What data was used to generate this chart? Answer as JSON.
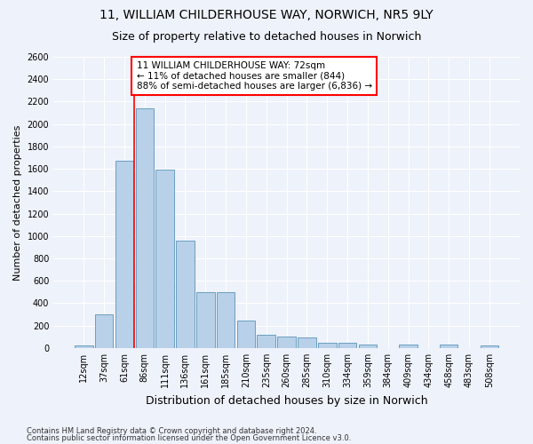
{
  "title1": "11, WILLIAM CHILDERHOUSE WAY, NORWICH, NR5 9LY",
  "title2": "Size of property relative to detached houses in Norwich",
  "xlabel": "Distribution of detached houses by size in Norwich",
  "ylabel": "Number of detached properties",
  "bar_labels": [
    "12sqm",
    "37sqm",
    "61sqm",
    "86sqm",
    "111sqm",
    "136sqm",
    "161sqm",
    "185sqm",
    "210sqm",
    "235sqm",
    "260sqm",
    "285sqm",
    "310sqm",
    "334sqm",
    "359sqm",
    "384sqm",
    "409sqm",
    "434sqm",
    "458sqm",
    "483sqm",
    "508sqm"
  ],
  "bar_values": [
    25,
    300,
    1670,
    2140,
    1590,
    960,
    500,
    500,
    245,
    120,
    100,
    95,
    45,
    45,
    30,
    0,
    30,
    0,
    30,
    0,
    25
  ],
  "bar_color": "#b8d0e8",
  "bar_edge_color": "#6a9fc0",
  "annotation_text_line1": "11 WILLIAM CHILDERHOUSE WAY: 72sqm",
  "annotation_text_line2": "← 11% of detached houses are smaller (844)",
  "annotation_text_line3": "88% of semi-detached houses are larger (6,836) →",
  "annotation_box_color": "white",
  "annotation_box_edge_color": "red",
  "vline_color": "red",
  "vline_x": 2.5,
  "ylim": [
    0,
    2600
  ],
  "yticks": [
    0,
    200,
    400,
    600,
    800,
    1000,
    1200,
    1400,
    1600,
    1800,
    2000,
    2200,
    2400,
    2600
  ],
  "footer1": "Contains HM Land Registry data © Crown copyright and database right 2024.",
  "footer2": "Contains public sector information licensed under the Open Government Licence v3.0.",
  "bg_color": "#eef2fa",
  "plot_bg_color": "#eef2fa",
  "grid_color": "#ffffff",
  "title1_fontsize": 10,
  "title2_fontsize": 9,
  "tick_fontsize": 7,
  "ylabel_fontsize": 8,
  "xlabel_fontsize": 9,
  "annotation_fontsize": 7.5,
  "footer_fontsize": 6
}
